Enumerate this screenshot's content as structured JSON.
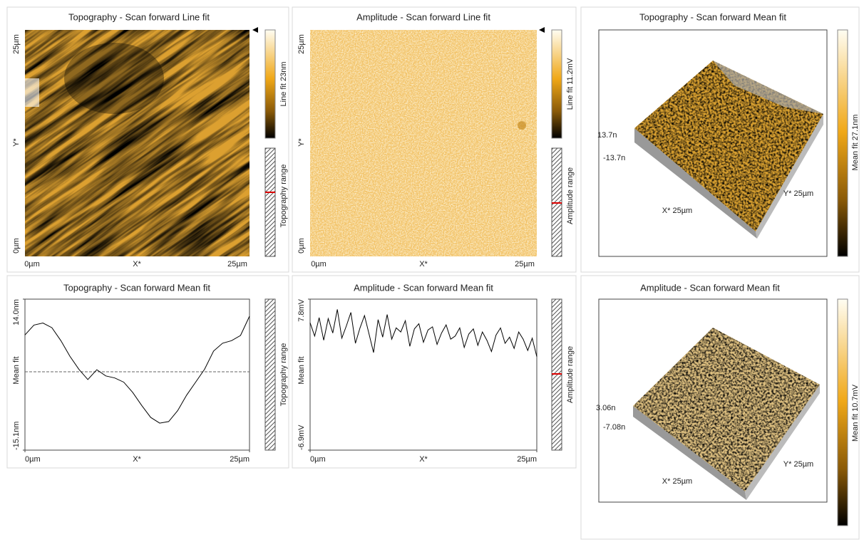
{
  "panels": [
    {
      "title": "Topography - Scan forward   Line fit",
      "y_labels": [
        "25µm",
        "Y*",
        "0µm"
      ],
      "x_labels": [
        "0µm",
        "X*",
        "25µm"
      ],
      "colorbar_label": "Line fit 23nm",
      "range_label": "Topography range"
    },
    {
      "title": "Amplitude - Scan forward   Line fit",
      "y_labels": [
        "25µm",
        "Y*",
        "0µm"
      ],
      "x_labels": [
        "0µm",
        "X*",
        "25µm"
      ],
      "colorbar_label": "Line fit 11.2mV",
      "range_label": "Amplitude range"
    },
    {
      "title": "Topography - Scan forward   Mean fit",
      "z_labels": [
        "13.7n",
        "-13.7n"
      ],
      "x_label": "X* 25µm",
      "y_label": "Y* 25µm",
      "colorbar_label": "Mean fit 27.1nm"
    },
    {
      "title": "Amplitude - Scan forward   Mean fit",
      "z_labels": [
        "3.06n",
        "-7.08n"
      ],
      "x_label": "X* 25µm",
      "y_label": "Y* 25µm",
      "colorbar_label": "Mean fit 10.7mV"
    }
  ],
  "profiles": [
    {
      "type": "line",
      "title": "Topography - Scan forward   Mean fit",
      "ylabel": "Mean fit",
      "xlabel": "X*",
      "range_label": "Topography range",
      "color": "#000000",
      "x": [
        0,
        1,
        2,
        3,
        4,
        5,
        6,
        7,
        8,
        9,
        10,
        11,
        12,
        13,
        14,
        15,
        16,
        17,
        18,
        19,
        20,
        21,
        22,
        23,
        24,
        25
      ],
      "values": [
        7.1,
        9.0,
        9.4,
        8.5,
        6.0,
        3.0,
        0.5,
        -1.5,
        0.4,
        -0.8,
        -1.2,
        -2.0,
        -4.0,
        -6.5,
        -8.8,
        -9.9,
        -9.6,
        -7.5,
        -4.5,
        -2.0,
        0.5,
        4.0,
        5.5,
        6.0,
        7.0,
        10.7
      ],
      "xlim": [
        0,
        25
      ],
      "ylim": [
        -15.1,
        14.0
      ],
      "xticks": [
        {
          "value": 0,
          "label": "0µm"
        },
        {
          "value": 25,
          "label": "25µm"
        }
      ],
      "yticks": [
        {
          "value": 14.0,
          "label": "14.0nm"
        },
        {
          "value": -15.1,
          "label": "-15.1nm"
        }
      ],
      "reference_line": 0
    },
    {
      "type": "line",
      "title": "Amplitude - Scan forward   Mean fit",
      "ylabel": "Mean fit",
      "xlabel": "X*",
      "range_label": "Amplitude range",
      "color": "#000000",
      "x": [
        0,
        0.5,
        1,
        1.5,
        2,
        2.5,
        3,
        3.5,
        4,
        4.5,
        5,
        5.5,
        6,
        6.5,
        7,
        7.5,
        8,
        8.5,
        9,
        9.5,
        10,
        10.5,
        11,
        11.5,
        12,
        12.5,
        13,
        13.5,
        14,
        14.5,
        15,
        15.5,
        16,
        16.5,
        17,
        17.5,
        18,
        18.5,
        19,
        19.5,
        20,
        20.5,
        21,
        21.5,
        22,
        22.5,
        23,
        23.5,
        24,
        24.5,
        25
      ],
      "values": [
        5.5,
        4.2,
        6.0,
        3.8,
        5.9,
        4.5,
        6.8,
        4.0,
        5.2,
        6.5,
        3.5,
        5.0,
        6.2,
        4.4,
        2.6,
        5.8,
        4.1,
        6.3,
        3.9,
        5.0,
        4.6,
        5.7,
        3.2,
        4.9,
        5.4,
        3.6,
        4.8,
        5.1,
        3.4,
        4.5,
        5.3,
        3.9,
        4.2,
        5.0,
        3.1,
        4.4,
        4.9,
        3.3,
        4.6,
        3.8,
        2.7,
        4.3,
        5.0,
        3.5,
        4.1,
        3.0,
        4.6,
        3.9,
        2.8,
        4.0,
        2.2
      ],
      "xlim": [
        0,
        25
      ],
      "ylim": [
        -6.9,
        7.8
      ],
      "xticks": [
        {
          "value": 0,
          "label": "0µm"
        },
        {
          "value": 25,
          "label": "25µm"
        }
      ],
      "yticks": [
        {
          "value": 7.8,
          "label": "7.8mV"
        },
        {
          "value": -6.9,
          "label": "-6.9mV"
        }
      ]
    }
  ]
}
